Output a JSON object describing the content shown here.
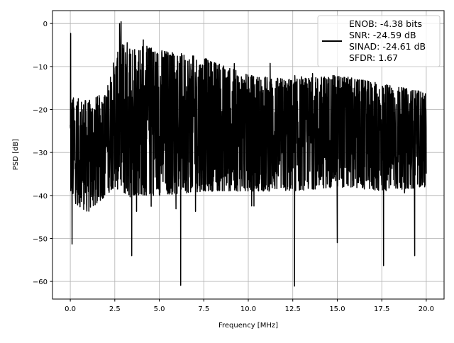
{
  "chart_data": {
    "type": "line",
    "title": "",
    "xlabel": "Frequency [MHz]",
    "ylabel": "PSD [dB]",
    "xlim": [
      -1.0,
      21.0
    ],
    "ylim": [
      -64.1,
      3.0
    ],
    "xticks": [
      0,
      2.5,
      5,
      7.5,
      10,
      12.5,
      15,
      17.5,
      20
    ],
    "xtick_labels": [
      "0.0",
      "2.5",
      "5.0",
      "7.5",
      "10.0",
      "12.5",
      "15.0",
      "17.5",
      "20.0"
    ],
    "yticks": [
      0,
      -10,
      -20,
      -30,
      -40,
      -50,
      -60
    ],
    "ytick_labels": [
      "0",
      "−10",
      "−20",
      "−30",
      "−40",
      "−50",
      "−60"
    ],
    "grid": true,
    "legend": {
      "placement": "top-right",
      "entries": [
        "ENOB: -4.38 bits",
        "SNR: -24.59 dB",
        "SINAD: -24.61 dB",
        "SFDR: 1.67"
      ]
    },
    "series": [
      {
        "name": "PSD",
        "color": "#000000",
        "x_range": [
          0,
          20
        ],
        "n_points": 2048,
        "envelope": {
          "freq": [
            0,
            1,
            2,
            2.5,
            3,
            5,
            7.5,
            10,
            12.5,
            15,
            17.5,
            20
          ],
          "upper": [
            -17,
            -18,
            -16,
            -8,
            -4,
            -6,
            -8,
            -12,
            -13,
            -12,
            -14,
            -16
          ],
          "lower": [
            -41,
            -44,
            -40,
            -38,
            -40,
            -40,
            -39,
            -39,
            -39,
            -38,
            -39,
            -38
          ]
        },
        "spikes": [
          {
            "x": 0.02,
            "y": -2.3
          },
          {
            "x": 0.1,
            "y": -51.3
          },
          {
            "x": 2.77,
            "y": 0.0
          },
          {
            "x": 3.45,
            "y": -54.0
          },
          {
            "x": 6.2,
            "y": -60.9
          },
          {
            "x": 12.6,
            "y": -61.1
          },
          {
            "x": 17.6,
            "y": -56.3
          },
          {
            "x": 19.35,
            "y": -54.0
          },
          {
            "x": 4.1,
            "y": -3.8
          },
          {
            "x": 15.0,
            "y": -51.0
          }
        ]
      }
    ]
  }
}
